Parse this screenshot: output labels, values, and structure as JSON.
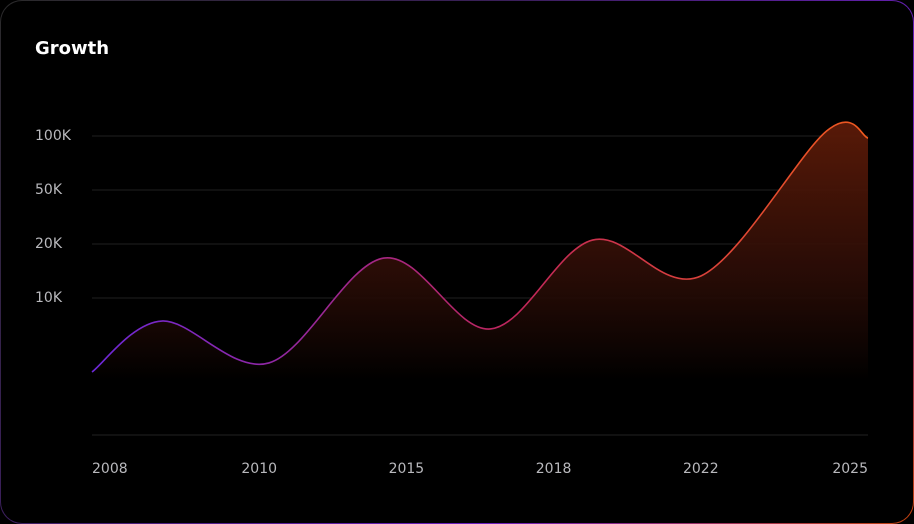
{
  "chart_data": {
    "type": "area",
    "title": "Growth",
    "x": [
      2008,
      2008.9,
      2010.7,
      2014.4,
      2016.7,
      2018.9,
      2021.7,
      2024.2,
      2025
    ],
    "values": [
      4600,
      8320,
      5260,
      17400,
      7740,
      22200,
      14100,
      104600,
      98100
    ],
    "xlim": [
      2008,
      2025
    ],
    "xticks": [
      2008,
      2010,
      2015,
      2018,
      2022,
      2025
    ],
    "ylim": [
      0,
      100000
    ],
    "yticks": [
      {
        "value": 10000,
        "label": "10K"
      },
      {
        "value": 20000,
        "label": "20K"
      },
      {
        "value": 50000,
        "label": "50K"
      },
      {
        "value": 100000,
        "label": "100K"
      }
    ],
    "colors": [
      "#6d28d9",
      "#c0265a",
      "#f05a1e"
    ],
    "grid": true
  }
}
